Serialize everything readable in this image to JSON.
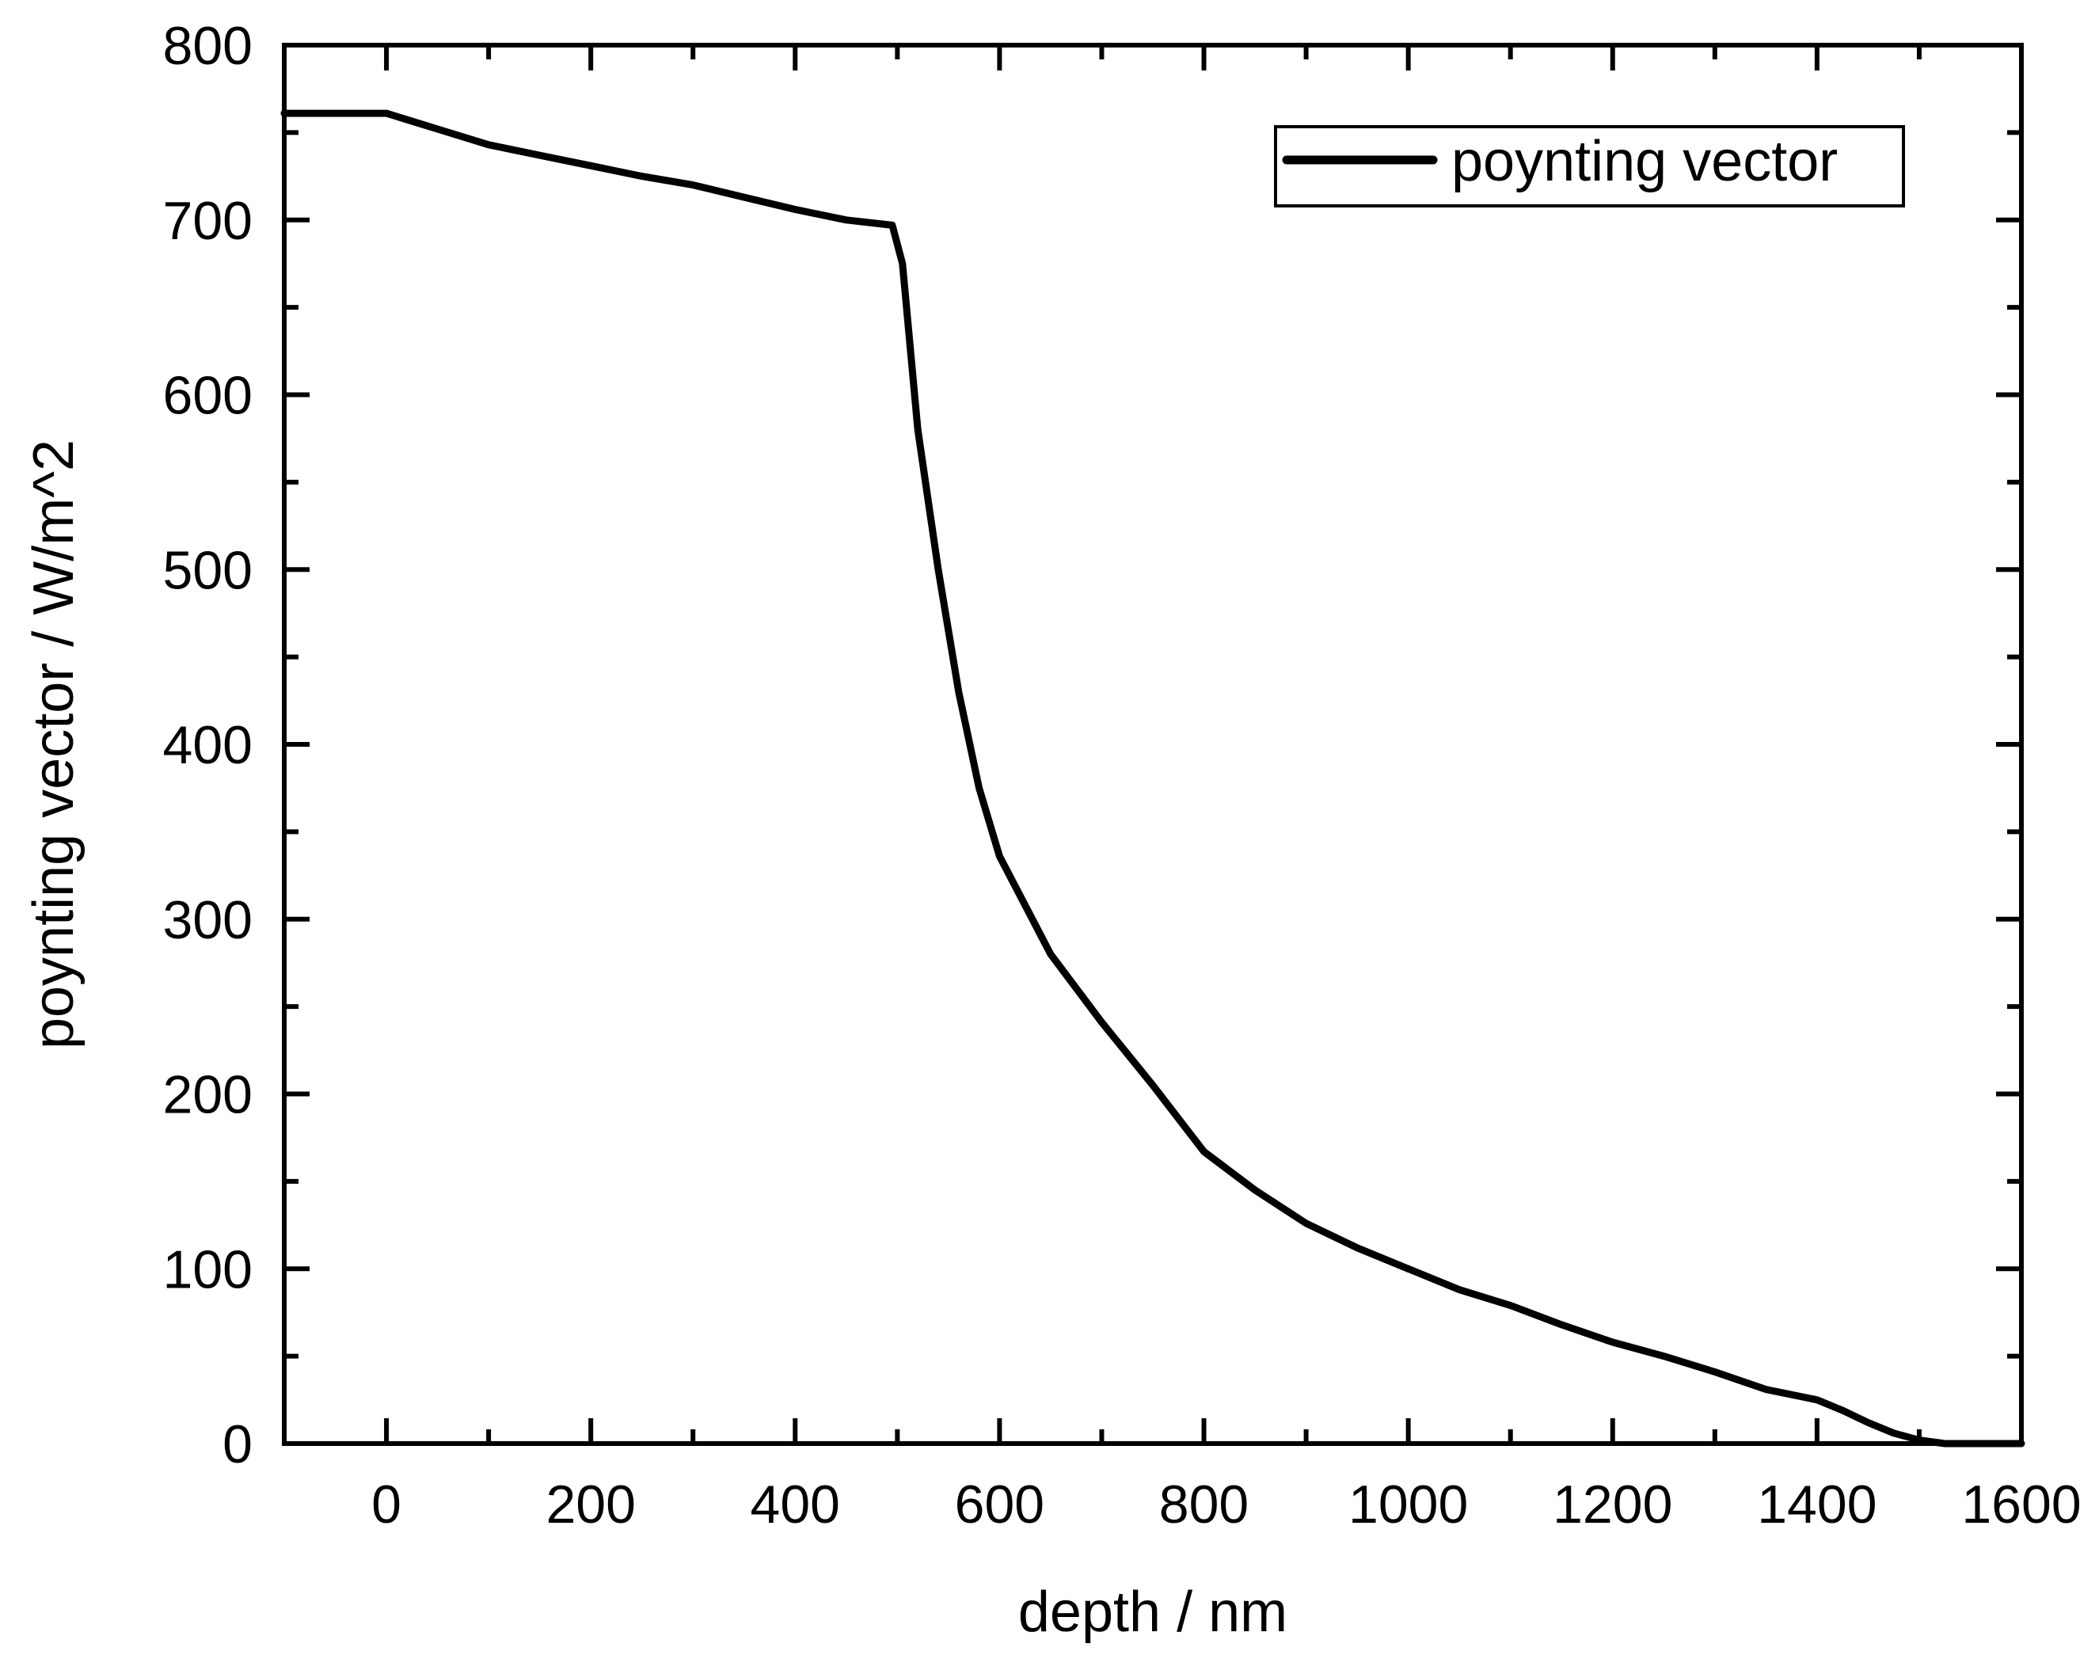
{
  "chart_data": {
    "type": "line",
    "title": "",
    "xlabel": "depth / nm",
    "ylabel": "poynting vector / W/m^2",
    "xlim": [
      -100,
      1600
    ],
    "ylim": [
      0,
      800
    ],
    "grid": false,
    "legend_position": "upper right",
    "x_ticks": [
      0,
      200,
      400,
      600,
      800,
      1000,
      1200,
      1400,
      1600
    ],
    "y_ticks": [
      0,
      100,
      200,
      300,
      400,
      500,
      600,
      700,
      800
    ],
    "series": [
      {
        "name": "poynting vector",
        "color": "#000000",
        "x": [
          -100,
          0,
          50,
          100,
          150,
          200,
          250,
          300,
          350,
          400,
          450,
          495,
          505,
          520,
          540,
          560,
          580,
          600,
          650,
          700,
          750,
          800,
          850,
          900,
          950,
          1000,
          1050,
          1100,
          1150,
          1200,
          1250,
          1300,
          1350,
          1400,
          1425,
          1450,
          1475,
          1500,
          1525,
          1550,
          1600
        ],
        "values": [
          761,
          761,
          752,
          743,
          737,
          731,
          725,
          720,
          713,
          706,
          700,
          697,
          675,
          580,
          500,
          430,
          375,
          336,
          280,
          241,
          205,
          167,
          145,
          126,
          112,
          100,
          88,
          79,
          68,
          58,
          50,
          41,
          31,
          25,
          19,
          12,
          6,
          2,
          0,
          0,
          0
        ]
      }
    ]
  },
  "axes": {
    "x_title": "depth / nm",
    "y_title": "poynting vector / W/m^2",
    "x_tick_labels": [
      "0",
      "200",
      "400",
      "600",
      "800",
      "1000",
      "1200",
      "1400",
      "1600"
    ],
    "y_tick_labels": [
      "0",
      "100",
      "200",
      "300",
      "400",
      "500",
      "600",
      "700",
      "800"
    ]
  },
  "legend": {
    "label": "poynting vector"
  }
}
